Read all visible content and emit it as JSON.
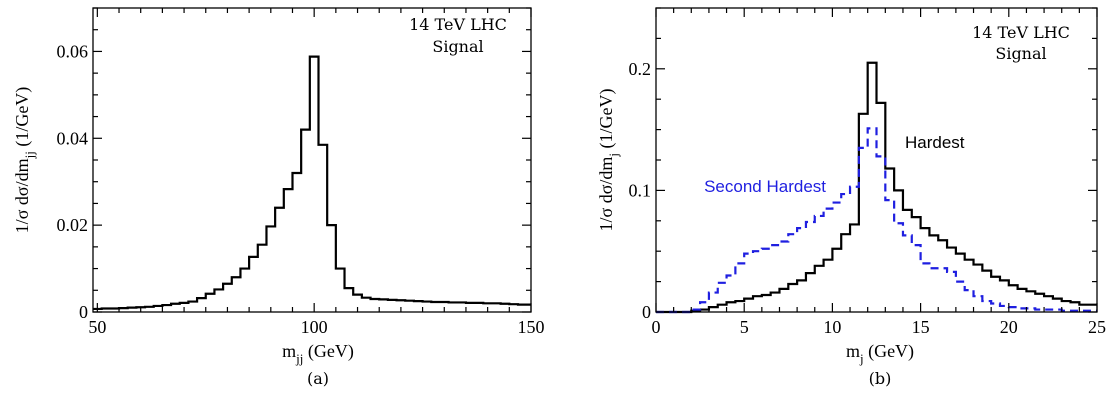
{
  "chart_data": [
    {
      "type": "line",
      "caption": "(a)",
      "xlabel": "m",
      "xlabel_sub": "jj",
      "xlabel_unit": " (GeV)",
      "ylabel": "1/σ  dσ/dm",
      "ylabel_sub": "jj",
      "ylabel_unit": " (1/GeV)",
      "xlim": [
        49,
        150
      ],
      "ylim": [
        0,
        0.07
      ],
      "xticks": [
        50,
        100,
        150
      ],
      "yticks": [
        0,
        0.02,
        0.04,
        0.06
      ],
      "ytick_labels": [
        "0",
        "0.02",
        "0.04",
        "0.06"
      ],
      "annotations": [
        "14 TeV LHC",
        "Signal"
      ],
      "series": [
        {
          "style": "step-solid",
          "color": "#000000",
          "bin_edges": [
            49,
            51,
            53,
            55,
            57,
            59,
            61,
            63,
            65,
            67,
            69,
            71,
            73,
            75,
            77,
            79,
            81,
            83,
            85,
            87,
            89,
            91,
            93,
            95,
            97,
            99,
            101,
            103,
            105,
            107,
            109,
            111,
            113,
            115,
            117,
            119,
            121,
            123,
            125,
            127,
            129,
            131,
            133,
            135,
            137,
            139,
            141,
            143,
            145,
            147,
            150
          ],
          "values": [
            0.0007,
            0.0008,
            0.0008,
            0.0009,
            0.001,
            0.0011,
            0.0012,
            0.0014,
            0.0016,
            0.0019,
            0.0021,
            0.0024,
            0.0032,
            0.0042,
            0.0052,
            0.0065,
            0.008,
            0.01,
            0.0127,
            0.0155,
            0.0197,
            0.024,
            0.0283,
            0.032,
            0.042,
            0.0588,
            0.0385,
            0.02,
            0.01,
            0.0055,
            0.004,
            0.0033,
            0.003,
            0.0029,
            0.0028,
            0.0027,
            0.0026,
            0.0025,
            0.0024,
            0.0023,
            0.0023,
            0.0022,
            0.0022,
            0.0021,
            0.0021,
            0.002,
            0.002,
            0.0019,
            0.0018,
            0.0017
          ]
        }
      ]
    },
    {
      "type": "line",
      "caption": "(b)",
      "xlabel": "m",
      "xlabel_sub": "j",
      "xlabel_unit": " (GeV)",
      "ylabel": "1/σ  dσ/dm",
      "ylabel_sub": "j",
      "ylabel_unit": " (1/GeV)",
      "xlim": [
        0,
        25
      ],
      "ylim": [
        0,
        0.25
      ],
      "xticks": [
        0,
        5,
        10,
        15,
        20,
        25
      ],
      "yticks": [
        0,
        0.1,
        0.2
      ],
      "ytick_labels": [
        "0",
        "0.1",
        "0.2"
      ],
      "annotations": [
        "14 TeV LHC",
        "Signal"
      ],
      "series": [
        {
          "name": "Hardest",
          "style": "step-solid",
          "color": "#000000",
          "bin_edges": [
            0,
            0.5,
            1,
            1.5,
            2,
            2.5,
            3,
            3.5,
            4,
            4.5,
            5,
            5.5,
            6,
            6.5,
            7,
            7.5,
            8,
            8.5,
            9,
            9.5,
            10,
            10.5,
            11,
            11.5,
            12,
            12.5,
            13,
            13.5,
            14,
            14.5,
            15,
            15.5,
            16,
            16.5,
            17,
            17.5,
            18,
            18.5,
            19,
            19.5,
            20,
            20.5,
            21,
            21.5,
            22,
            22.5,
            23,
            23.5,
            24,
            24.5,
            25
          ],
          "values": [
            0,
            0,
            0,
            0,
            0.001,
            0.002,
            0.004,
            0.006,
            0.008,
            0.009,
            0.011,
            0.013,
            0.014,
            0.016,
            0.019,
            0.023,
            0.026,
            0.032,
            0.038,
            0.043,
            0.052,
            0.064,
            0.072,
            0.163,
            0.205,
            0.172,
            0.118,
            0.1,
            0.084,
            0.078,
            0.069,
            0.063,
            0.059,
            0.053,
            0.048,
            0.043,
            0.039,
            0.034,
            0.029,
            0.026,
            0.022,
            0.019,
            0.017,
            0.015,
            0.013,
            0.011,
            0.009,
            0.008,
            0.006,
            0.006
          ]
        },
        {
          "name": "Second Hardest",
          "style": "step-dashed",
          "color": "#1f1fe0",
          "bin_edges": [
            0,
            0.5,
            1,
            1.5,
            2,
            2.5,
            3,
            3.5,
            4,
            4.5,
            5,
            5.5,
            6,
            6.5,
            7,
            7.5,
            8,
            8.5,
            9,
            9.5,
            10,
            10.5,
            11,
            11.5,
            12,
            12.5,
            13,
            13.5,
            14,
            14.5,
            15,
            15.5,
            16,
            16.5,
            17,
            17.5,
            18,
            18.5,
            19,
            19.5,
            20,
            20.5,
            21,
            21.5,
            22,
            22.5,
            23,
            23.5,
            24,
            24.5,
            25
          ],
          "values": [
            0,
            0,
            0,
            0,
            0.002,
            0.008,
            0.016,
            0.024,
            0.03,
            0.04,
            0.048,
            0.05,
            0.052,
            0.055,
            0.058,
            0.064,
            0.069,
            0.074,
            0.079,
            0.085,
            0.09,
            0.097,
            0.103,
            0.135,
            0.151,
            0.128,
            0.092,
            0.073,
            0.063,
            0.055,
            0.04,
            0.036,
            0.036,
            0.033,
            0.025,
            0.018,
            0.013,
            0.009,
            0.007,
            0.005,
            0.004,
            0.003,
            0.003,
            0.002,
            0.002,
            0.002,
            0.001,
            0.001,
            0.001,
            0.001
          ]
        }
      ]
    }
  ]
}
